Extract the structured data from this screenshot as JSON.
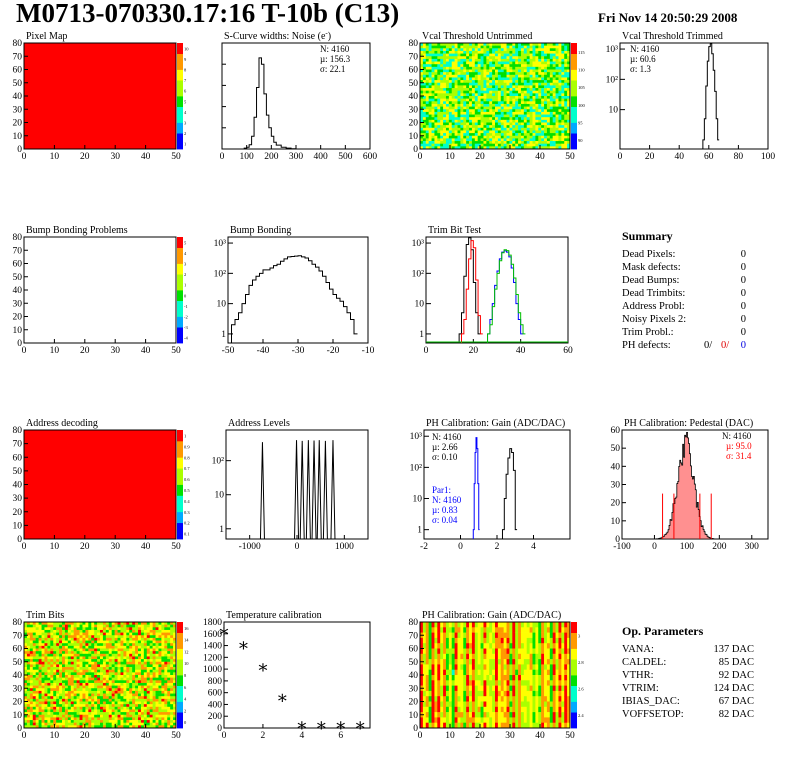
{
  "header": {
    "title": "M0713-070330.17:16 T-10b (C13)",
    "date": "Fri Nov 14 20:50:29 2008"
  },
  "colors": {
    "red": "#ff0000",
    "blue": "#0000ff",
    "green": "#00c000",
    "pedestal_fill": "#ff9090"
  },
  "chart_data": [
    {
      "id": "pixel_map",
      "type": "heatmap",
      "title": "Pixel Map",
      "xlim": [
        0,
        52
      ],
      "ylim": [
        0,
        80
      ],
      "xticks": [
        "0",
        "10",
        "20",
        "30",
        "40",
        "50"
      ],
      "yticks": [
        "0",
        "10",
        "20",
        "30",
        "40",
        "50",
        "60",
        "70",
        "80"
      ],
      "fill": "uniform-max",
      "palette_ticks": [
        "1",
        "2",
        "3",
        "4",
        "5",
        "6",
        "7",
        "8",
        "9",
        "10"
      ]
    },
    {
      "id": "scurve_noise",
      "type": "line",
      "title": "S-Curve widths: Noise (e",
      "title_sup": "-",
      "title_suffix": ")",
      "xlim": [
        0,
        600
      ],
      "xticks": [
        "0",
        "100",
        "200",
        "300",
        "400",
        "500",
        "600"
      ],
      "yticks": [],
      "stats": [
        "N: 4160",
        "µ: 156.3",
        "σ: 22.1"
      ],
      "x": [
        70,
        90,
        100,
        110,
        120,
        130,
        140,
        150,
        160,
        170,
        180,
        190,
        200,
        210,
        220,
        240,
        260,
        280,
        300
      ],
      "y": [
        0,
        4,
        8,
        20,
        60,
        150,
        290,
        430,
        400,
        260,
        160,
        100,
        60,
        32,
        18,
        8,
        4,
        1,
        0
      ],
      "ymax": 500
    },
    {
      "id": "vcal_untrimmed",
      "type": "heatmap",
      "title": "Vcal Threshold Untrimmed",
      "xlim": [
        0,
        52
      ],
      "ylim": [
        0,
        80
      ],
      "xticks": [
        "0",
        "10",
        "20",
        "30",
        "40",
        "50"
      ],
      "yticks": [
        "0",
        "10",
        "20",
        "30",
        "40",
        "50",
        "60",
        "70",
        "80"
      ],
      "fill": "random-green-cyan",
      "palette_ticks": [
        "90",
        "95",
        "100",
        "105",
        "110",
        "115"
      ]
    },
    {
      "id": "vcal_trimmed",
      "type": "line",
      "title": "Vcal Threshold Trimmed",
      "log": true,
      "xlim": [
        0,
        100
      ],
      "xticks": [
        "0",
        "20",
        "40",
        "60",
        "80",
        "100"
      ],
      "yticks": [
        "10",
        "10²",
        "10³"
      ],
      "stats": [
        "N: 4160",
        "µ: 60.6",
        "σ:  1.3"
      ],
      "x": [
        56,
        57,
        58,
        59,
        60,
        61,
        62,
        63,
        64,
        65,
        66
      ],
      "y": [
        1,
        5,
        60,
        400,
        1200,
        1500,
        700,
        200,
        40,
        5,
        1
      ]
    },
    {
      "id": "bump_problems",
      "type": "heatmap",
      "title": "Bump Bonding Problems",
      "xlim": [
        0,
        52
      ],
      "ylim": [
        0,
        80
      ],
      "xticks": [
        "0",
        "10",
        "20",
        "30",
        "40",
        "50"
      ],
      "yticks": [
        "0",
        "10",
        "20",
        "30",
        "40",
        "50",
        "60",
        "70",
        "80"
      ],
      "fill": "empty",
      "palette_ticks": [
        "-4",
        "-3",
        "-2",
        "-1",
        "0",
        "1",
        "2",
        "3",
        "4",
        "5"
      ]
    },
    {
      "id": "bump_bonding",
      "type": "line",
      "title": "Bump Bonding",
      "log": true,
      "xlim": [
        -50,
        -10
      ],
      "xticks": [
        "-50",
        "-40",
        "-30",
        "-20",
        "-10"
      ],
      "yticks": [
        "1",
        "10",
        "10²",
        "10³"
      ],
      "x": [
        -49,
        -48,
        -47,
        -46,
        -45,
        -44,
        -43,
        -42,
        -41,
        -40,
        -39,
        -38,
        -37,
        -36,
        -35,
        -34,
        -33,
        -32,
        -31,
        -30,
        -29,
        -28,
        -27,
        -26,
        -25,
        -24,
        -23,
        -22,
        -21,
        -20,
        -19,
        -18,
        -17,
        -16,
        -15,
        -14
      ],
      "y": [
        2,
        3,
        5,
        10,
        20,
        40,
        60,
        80,
        100,
        130,
        130,
        150,
        180,
        200,
        250,
        300,
        350,
        360,
        370,
        380,
        350,
        320,
        260,
        200,
        160,
        120,
        80,
        50,
        30,
        20,
        15,
        12,
        8,
        5,
        3,
        1
      ]
    },
    {
      "id": "trim_bit_test",
      "type": "line",
      "title": "Trim Bit Test",
      "log": true,
      "xlim": [
        0,
        60
      ],
      "xticks": [
        "0",
        "20",
        "40",
        "60"
      ],
      "yticks": [
        "1",
        "10",
        "10²",
        "10³"
      ],
      "series": [
        {
          "color": "#000000",
          "x": [
            14,
            15,
            16,
            17,
            18,
            19,
            20,
            21,
            22
          ],
          "y": [
            1,
            5,
            80,
            900,
            1500,
            600,
            50,
            5,
            1
          ]
        },
        {
          "color": "#ff0000",
          "x": [
            15,
            16,
            17,
            18,
            19,
            20,
            21,
            22,
            23
          ],
          "y": [
            1,
            3,
            30,
            300,
            1200,
            700,
            60,
            4,
            1
          ]
        },
        {
          "color": "#0000ff",
          "x": [
            26,
            27,
            28,
            29,
            30,
            31,
            32,
            33,
            34,
            35,
            36,
            37,
            38,
            39,
            40
          ],
          "y": [
            1,
            3,
            10,
            40,
            120,
            300,
            500,
            550,
            500,
            350,
            150,
            50,
            10,
            3,
            1
          ]
        },
        {
          "color": "#00c000",
          "x": [
            26,
            27,
            28,
            29,
            30,
            31,
            32,
            33,
            34,
            35,
            36,
            37,
            38,
            39,
            40,
            41
          ],
          "y": [
            1,
            2,
            8,
            30,
            100,
            260,
            480,
            600,
            560,
            400,
            200,
            70,
            20,
            5,
            2,
            1
          ]
        }
      ]
    },
    {
      "id": "address_decoding",
      "type": "heatmap",
      "title": "Address decoding",
      "xlim": [
        0,
        52
      ],
      "ylim": [
        0,
        80
      ],
      "xticks": [
        "0",
        "10",
        "20",
        "30",
        "40",
        "50"
      ],
      "yticks": [
        "0",
        "10",
        "20",
        "30",
        "40",
        "50",
        "60",
        "70",
        "80"
      ],
      "fill": "uniform-max",
      "palette_ticks": [
        "0.1",
        "0.2",
        "0.3",
        "0.4",
        "0.5",
        "0.6",
        "0.7",
        "0.8",
        "0.9",
        "1"
      ]
    },
    {
      "id": "address_levels",
      "type": "line",
      "title": "Address Levels",
      "log": true,
      "xlim": [
        -1500,
        1500
      ],
      "xticks": [
        "-1000",
        "0",
        "1000"
      ],
      "yticks": [
        "1",
        "10",
        "10²"
      ],
      "peaks_x": [
        -730,
        -10,
        110,
        240,
        360,
        470,
        600,
        760
      ],
      "peaks_y": [
        350,
        400,
        380,
        400,
        390,
        400,
        380,
        400
      ]
    },
    {
      "id": "ph_gain",
      "type": "line",
      "title": "PH Calibration: Gain (ADC/DAC)",
      "log": true,
      "xlim": [
        -2,
        6
      ],
      "xticks": [
        "-2",
        "0",
        "2",
        "4"
      ],
      "yticks": [
        "1",
        "10",
        "10²",
        "10³"
      ],
      "stats": [
        "N: 4160",
        "µ: 2.66",
        "σ: 0.10"
      ],
      "stats_blue": [
        "Par1:",
        "N: 4160",
        "µ: 0.83",
        "σ: 0.04"
      ],
      "series": [
        {
          "color": "#000000",
          "x": [
            2.3,
            2.4,
            2.5,
            2.6,
            2.7,
            2.8,
            2.9,
            3.0
          ],
          "y": [
            1,
            10,
            60,
            200,
            400,
            300,
            80,
            1
          ]
        },
        {
          "color": "#0000ff",
          "x": [
            0.7,
            0.75,
            0.8,
            0.85,
            0.9,
            0.95,
            1.0
          ],
          "y": [
            1,
            30,
            300,
            900,
            400,
            30,
            1
          ]
        }
      ]
    },
    {
      "id": "ph_pedestal",
      "type": "bar",
      "title": "PH Calibration: Pedestal (DAC)",
      "xlim": [
        -100,
        350
      ],
      "xticks": [
        "-100",
        "0",
        "100",
        "200",
        "300"
      ],
      "ylim": [
        0,
        60
      ],
      "yticks": [
        "0",
        "10",
        "20",
        "30",
        "40",
        "50",
        "60"
      ],
      "stats": [
        "N: 4160"
      ],
      "stats_red": [
        "µ: 95.0",
        "σ: 31.4"
      ]
    },
    {
      "id": "trim_bits",
      "type": "heatmap",
      "title": "Trim Bits",
      "xlim": [
        0,
        52
      ],
      "ylim": [
        0,
        80
      ],
      "xticks": [
        "0",
        "10",
        "20",
        "30",
        "40",
        "50"
      ],
      "yticks": [
        "0",
        "10",
        "20",
        "30",
        "40",
        "50",
        "60",
        "70",
        "80"
      ],
      "fill": "random-yellow-green",
      "palette_ticks": [
        "0",
        "2",
        "4",
        "6",
        "8",
        "10",
        "12",
        "14",
        "16"
      ]
    },
    {
      "id": "temperature_calibration",
      "type": "scatter",
      "title": "Temperature calibration",
      "xlim": [
        0,
        7.5
      ],
      "xticks": [
        "0",
        "2",
        "4",
        "6"
      ],
      "ylim": [
        0,
        1800
      ],
      "yticks": [
        "0",
        "200",
        "400",
        "600",
        "800",
        "1000",
        "1200",
        "1400",
        "1600",
        "1800"
      ],
      "x": [
        0,
        1,
        2,
        3,
        4,
        5,
        6,
        7
      ],
      "y": [
        1650,
        1410,
        1040,
        520,
        50,
        50,
        50,
        50
      ]
    },
    {
      "id": "ph_gain_map",
      "type": "heatmap",
      "title": "PH Calibration: Gain (ADC/DAC)",
      "xlim": [
        0,
        52
      ],
      "ylim": [
        0,
        80
      ],
      "xticks": [
        "0",
        "10",
        "20",
        "30",
        "40",
        "50"
      ],
      "yticks": [
        "0",
        "10",
        "20",
        "30",
        "40",
        "50",
        "60",
        "70",
        "80"
      ],
      "fill": "column-structure",
      "palette_ticks": [
        "2.4",
        "2.6",
        "2.8",
        "3"
      ]
    }
  ],
  "summary": {
    "title": "Summary",
    "rows": [
      {
        "label": "Dead Pixels:",
        "value": "0"
      },
      {
        "label": "Mask defects:",
        "value": "0"
      },
      {
        "label": "Dead Bumps:",
        "value": "0"
      },
      {
        "label": "Dead Trimbits:",
        "value": "0"
      },
      {
        "label": "Address Probl:",
        "value": "0"
      },
      {
        "label": "Noisy Pixels 2:",
        "value": "0"
      },
      {
        "label": "Trim Probl.:",
        "value": "0"
      }
    ],
    "ph_defects": {
      "label": "PH defects:",
      "v1": "0/",
      "v2": "0/",
      "v3": "0"
    }
  },
  "op_parameters": {
    "title": "Op. Parameters",
    "rows": [
      {
        "label": "VANA:",
        "value": "137 DAC"
      },
      {
        "label": "CALDEL:",
        "value": "85 DAC"
      },
      {
        "label": "VTHR:",
        "value": "92 DAC"
      },
      {
        "label": "VTRIM:",
        "value": "124 DAC"
      },
      {
        "label": "IBIAS_DAC:",
        "value": "67 DAC"
      },
      {
        "label": "VOFFSETOP:",
        "value": "82 DAC"
      }
    ]
  }
}
